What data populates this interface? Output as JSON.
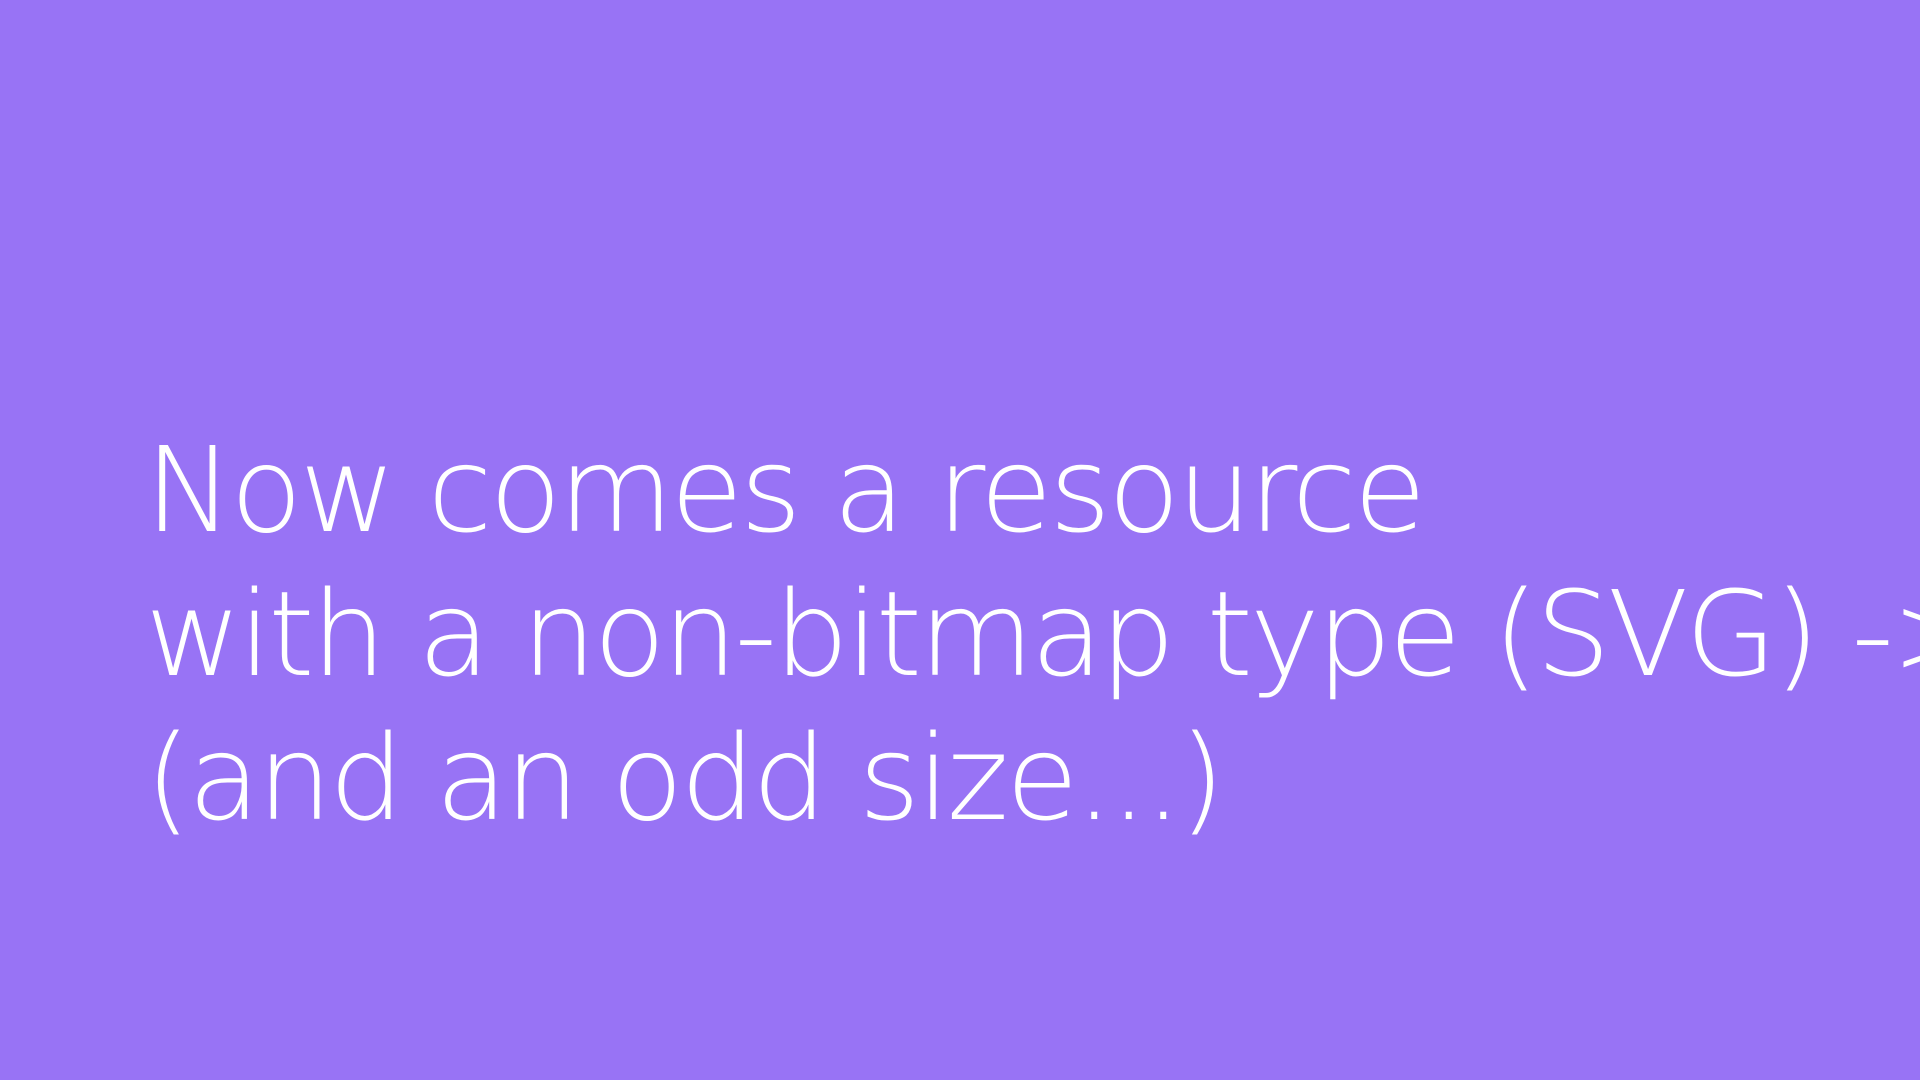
{
  "slide": {
    "background_color": "#9873f5",
    "text_color": "#ffffff",
    "lines": [
      "Now comes a resource",
      "with a non-bitmap type (SVG) ->",
      "(and an odd size...)"
    ]
  }
}
